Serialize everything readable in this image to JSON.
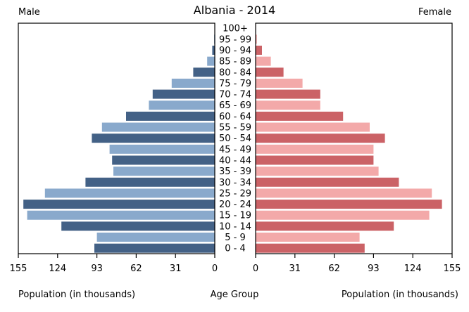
{
  "chart_data": {
    "type": "bar",
    "subtype": "population-pyramid",
    "title": "Albania - 2014",
    "left_label": "Male",
    "right_label": "Female",
    "xlabel_left": "Population (in thousands)",
    "xlabel_center": "Age Group",
    "xlabel_right": "Population (in thousands)",
    "xlim": [
      0,
      155
    ],
    "ticks": [
      0,
      31,
      62,
      93,
      124,
      155
    ],
    "tick_labels": [
      "0",
      "31",
      "62",
      "93",
      "124",
      "155"
    ],
    "grid": false,
    "categories": [
      "0 - 4",
      "5 - 9",
      "10 - 14",
      "15 - 19",
      "20 - 24",
      "25 - 29",
      "30 - 34",
      "35 - 39",
      "40 - 44",
      "45 - 49",
      "50 - 54",
      "55 - 59",
      "60 - 64",
      "65 - 69",
      "70 - 74",
      "75 - 79",
      "80 - 84",
      "85 - 89",
      "90 - 94",
      "95 - 99",
      "100+"
    ],
    "series": [
      {
        "name": "Male",
        "side": "left",
        "colors": [
          "#436186",
          "#89a9cc"
        ],
        "values": [
          95,
          93,
          121,
          148,
          151,
          134,
          102,
          80,
          81,
          83,
          97,
          89,
          70,
          52,
          49,
          34,
          17,
          6,
          2,
          0.5,
          0.2
        ]
      },
      {
        "name": "Female",
        "side": "right",
        "colors": [
          "#cb6266",
          "#f3a9a9"
        ],
        "values": [
          86,
          82,
          109,
          137,
          147,
          139,
          113,
          97,
          93,
          93,
          102,
          90,
          69,
          51,
          51,
          37,
          22,
          12,
          5,
          1,
          0.3
        ]
      }
    ]
  }
}
